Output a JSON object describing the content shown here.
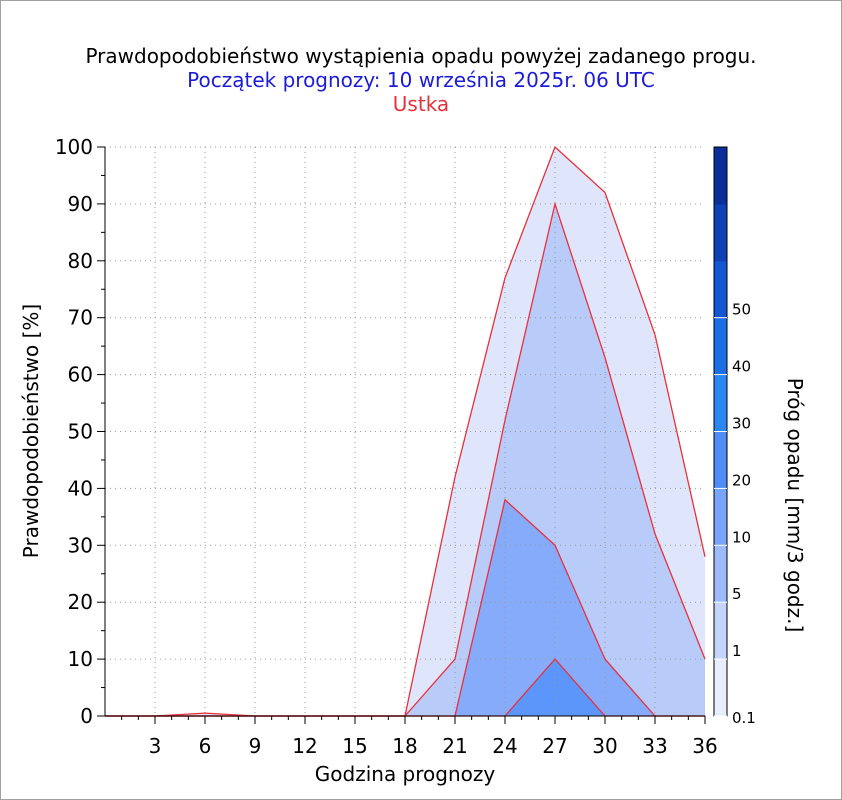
{
  "title": "Prawdopodobieństwo wystąpienia opadu powyżej zadanego progu.",
  "subtitle": "Początek prognozy: 10 września 2025r. 06 UTC",
  "station": "Ustka",
  "colors": {
    "title": "#000000",
    "subtitle": "#1c1cd8",
    "station": "#e8303c",
    "contour_line": "#e8303c",
    "grid": "#9a9a9a"
  },
  "chart_data": {
    "type": "area",
    "xlabel": "Godzina prognozy",
    "ylabel": "Prawdopodobieństwo [%]",
    "xlim": [
      0,
      36
    ],
    "ylim": [
      0,
      100
    ],
    "x_ticks": [
      3,
      6,
      9,
      12,
      15,
      18,
      21,
      24,
      27,
      30,
      33,
      36
    ],
    "y_ticks": [
      0,
      10,
      20,
      30,
      40,
      50,
      60,
      70,
      80,
      90,
      100
    ],
    "grid": true,
    "x": [
      0,
      3,
      6,
      9,
      12,
      15,
      18,
      21,
      24,
      27,
      30,
      33,
      36
    ],
    "series": [
      {
        "name": "0.1",
        "color": "#dfe6fb",
        "values": [
          0,
          0,
          0.5,
          0,
          0,
          0,
          0,
          42,
          77,
          100,
          92,
          67,
          28
        ]
      },
      {
        "name": "1",
        "color": "#b9ccf9",
        "values": [
          0,
          0,
          0,
          0,
          0,
          0,
          0,
          10,
          52,
          90,
          63,
          32,
          10
        ]
      },
      {
        "name": "5",
        "color": "#85abfa",
        "values": [
          0,
          0,
          0,
          0,
          0,
          0,
          0,
          0,
          38,
          30,
          10,
          0,
          0
        ]
      },
      {
        "name": "10",
        "color": "#5d96fa",
        "values": [
          0,
          0,
          0,
          0,
          0,
          0,
          0,
          0,
          0,
          10,
          0,
          0,
          0
        ]
      }
    ],
    "colorbar": {
      "label": "Próg opadu [mm/3 godz.]",
      "tick_labels": [
        "0.1",
        "1",
        "5",
        "10",
        "20",
        "30",
        "40",
        "50"
      ],
      "colors": [
        "#e8eefd",
        "#c4d4fb",
        "#9dbbfa",
        "#78a5fa",
        "#4f8cf6",
        "#2b86f2",
        "#1c6ee6",
        "#1556d2",
        "#0e40b6",
        "#0a2f98"
      ]
    }
  }
}
